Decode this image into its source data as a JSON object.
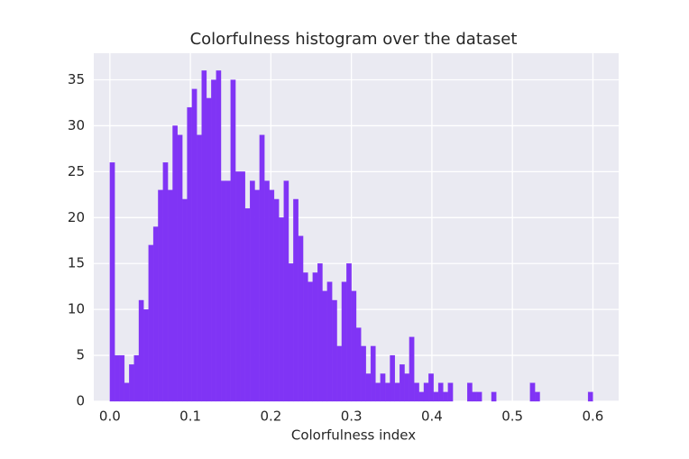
{
  "chart_data": {
    "type": "histogram",
    "title": "Colorfulness histogram over the dataset",
    "x_label": "Colorfulness index",
    "color": "#8034f5",
    "bins": [
      0,
      0.006,
      0.012,
      0.018,
      0.024,
      0.03,
      0.036,
      0.042,
      0.048,
      0.054,
      0.06,
      0.066,
      0.072,
      0.078,
      0.084,
      0.09,
      0.096,
      0.102,
      0.108,
      0.114,
      0.12,
      0.126,
      0.132,
      0.138,
      0.144,
      0.15,
      0.156,
      0.162,
      0.168,
      0.174,
      0.18,
      0.186,
      0.192,
      0.198,
      0.204,
      0.21,
      0.216,
      0.222,
      0.228,
      0.234,
      0.24,
      0.246,
      0.252,
      0.258,
      0.264,
      0.27,
      0.276,
      0.282,
      0.288,
      0.294,
      0.3,
      0.306,
      0.312,
      0.318,
      0.324,
      0.33,
      0.336,
      0.342,
      0.348,
      0.354,
      0.36,
      0.366,
      0.372,
      0.378,
      0.384,
      0.39,
      0.396,
      0.402,
      0.408,
      0.414,
      0.42,
      0.426,
      0.432,
      0.438,
      0.444,
      0.45,
      0.456,
      0.462,
      0.468,
      0.474,
      0.48,
      0.486,
      0.492,
      0.498,
      0.504,
      0.51,
      0.516,
      0.522,
      0.528,
      0.534,
      0.54,
      0.546,
      0.552,
      0.558,
      0.564,
      0.57,
      0.576,
      0.582,
      0.588,
      0.594,
      0.6
    ],
    "values": [
      26,
      5,
      5,
      2,
      4,
      5,
      11,
      10,
      17,
      19,
      23,
      26,
      23,
      30,
      29,
      22,
      32,
      34,
      29,
      36,
      33,
      35,
      36,
      24,
      24,
      35,
      25,
      25,
      21,
      24,
      23,
      29,
      24,
      23,
      22,
      20,
      24,
      15,
      22,
      18,
      14,
      13,
      14,
      15,
      12,
      13,
      11,
      6,
      13,
      15,
      12,
      8,
      6,
      3,
      6,
      2,
      3,
      2,
      5,
      2,
      4,
      3,
      7,
      2,
      1,
      2,
      3,
      1,
      2,
      1,
      2,
      0,
      0,
      0,
      2,
      1,
      1,
      0,
      0,
      1,
      0,
      0,
      0,
      0,
      0,
      0,
      0,
      2,
      1,
      0,
      0,
      0,
      0,
      0,
      0,
      0,
      0,
      0,
      0,
      1
    ],
    "xlim": [
      -0.02,
      0.632
    ],
    "ylim": [
      0,
      37.9
    ],
    "xticks": [
      {
        "value": 0,
        "label": "0.0"
      },
      0.1,
      0.2,
      0.3,
      0.4,
      0.5,
      0.6
    ],
    "yticks": [
      0,
      5,
      10,
      15,
      20,
      25,
      30,
      35
    ],
    "grid": true
  }
}
